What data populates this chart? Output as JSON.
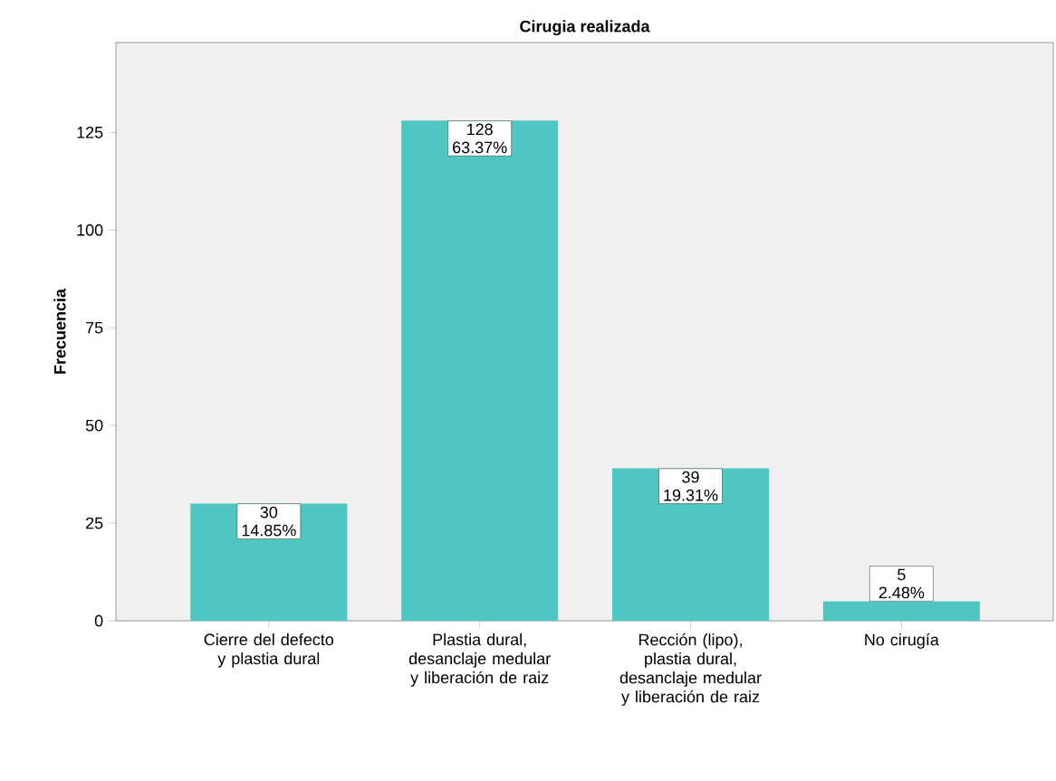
{
  "chart_data": {
    "type": "bar",
    "title": "Cirugia realizada",
    "ylabel": "Frecuencia",
    "categories": [
      "Cierre del defecto y plastia dural",
      "Plastia dural, desanclaje medular y liberación de raiz",
      "Rección (lipo), plastia dural, desanclaje medular y liberación de raiz",
      "No cirugía"
    ],
    "values": [
      30,
      128,
      39,
      5
    ],
    "value_labels": [
      "30 14.85%",
      "128 63.37%",
      "39 19.31%",
      "5 2.48%"
    ],
    "color": "#4fc6c2",
    "ylim": [
      0,
      148
    ],
    "yticks": [
      0,
      25,
      50,
      75,
      100,
      125
    ],
    "grid": false
  }
}
